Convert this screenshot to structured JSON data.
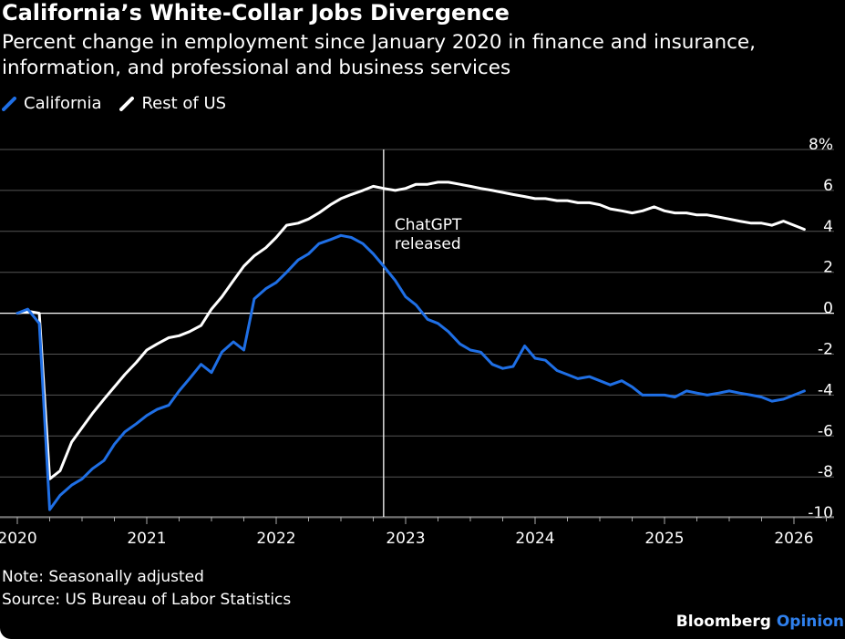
{
  "header": {
    "title": "California’s White-Collar Jobs Divergence",
    "subtitle": "Percent change in employment since January 2020 in finance and insurance, information, and professional and business services"
  },
  "legend": {
    "california": "California",
    "rest_of_us": "Rest of US"
  },
  "colors": {
    "california": "#1f6fe5",
    "rest_of_us": "#ffffff",
    "background": "#000000",
    "grid": "#555555",
    "accent": "#2f80ed"
  },
  "footer": {
    "note": "Note: Seasonally adjusted",
    "source": "Source: US Bureau of Labor Statistics",
    "brand_main": "Bloomberg",
    "brand_accent": "Opinion"
  },
  "chart_data": {
    "type": "line",
    "title": "California’s White-Collar Jobs Divergence",
    "subtitle": "Percent change in employment since January 2020 in finance and insurance, information, and professional and business services",
    "xlabel": "",
    "ylabel": "",
    "xlim": [
      2020.0,
      2026.33
    ],
    "ylim": [
      -11,
      8
    ],
    "yticks": [
      8,
      6,
      4,
      2,
      0,
      -2,
      -4,
      -6,
      -8,
      -10
    ],
    "ytick_labels": [
      "8%",
      "6",
      "4",
      "2",
      "0",
      "-2",
      "-4",
      "-6",
      "-8",
      "-10"
    ],
    "xticks": [
      2020,
      2021,
      2022,
      2023,
      2024,
      2025,
      2026
    ],
    "xtick_labels": [
      "2020",
      "2021",
      "2022",
      "2023",
      "2024",
      "2025",
      "2026"
    ],
    "grid": true,
    "legend_position": "top-left",
    "annotations": [
      {
        "x": 2022.83,
        "label_lines": [
          "ChatGPT",
          "released"
        ]
      }
    ],
    "series": [
      {
        "name": "California",
        "x": [
          2020.0,
          2020.08,
          2020.17,
          2020.25,
          2020.33,
          2020.42,
          2020.5,
          2020.58,
          2020.67,
          2020.75,
          2020.83,
          2020.92,
          2021.0,
          2021.08,
          2021.17,
          2021.25,
          2021.33,
          2021.42,
          2021.5,
          2021.58,
          2021.67,
          2021.75,
          2021.83,
          2021.92,
          2022.0,
          2022.08,
          2022.17,
          2022.25,
          2022.33,
          2022.42,
          2022.5,
          2022.58,
          2022.67,
          2022.75,
          2022.83,
          2022.92,
          2023.0,
          2023.08,
          2023.17,
          2023.25,
          2023.33,
          2023.42,
          2023.5,
          2023.58,
          2023.67,
          2023.75,
          2023.83,
          2023.92,
          2024.0,
          2024.08,
          2024.17,
          2024.25,
          2024.33,
          2024.42,
          2024.5,
          2024.58,
          2024.67,
          2024.75,
          2024.83,
          2024.92,
          2025.0,
          2025.08,
          2025.17,
          2025.25,
          2025.33,
          2025.42,
          2025.5,
          2025.58,
          2025.67,
          2025.75,
          2025.83,
          2025.92,
          2026.0,
          2026.08
        ],
        "values": [
          0.0,
          0.2,
          -0.5,
          -9.6,
          -8.9,
          -8.4,
          -8.1,
          -7.6,
          -7.2,
          -6.4,
          -5.8,
          -5.4,
          -5.0,
          -4.7,
          -4.5,
          -3.8,
          -3.2,
          -2.5,
          -2.9,
          -1.9,
          -1.4,
          -1.8,
          0.7,
          1.2,
          1.5,
          2.0,
          2.6,
          2.9,
          3.4,
          3.6,
          3.8,
          3.7,
          3.4,
          2.9,
          2.3,
          1.6,
          0.8,
          0.4,
          -0.3,
          -0.5,
          -0.9,
          -1.5,
          -1.8,
          -1.9,
          -2.5,
          -2.7,
          -2.6,
          -1.6,
          -2.2,
          -2.3,
          -2.8,
          -3.0,
          -3.2,
          -3.1,
          -3.3,
          -3.5,
          -3.3,
          -3.6,
          -4.0,
          -4.0,
          -4.0,
          -4.1,
          -3.8,
          -3.9,
          -4.0,
          -3.9,
          -3.8,
          -3.9,
          -4.0,
          -4.1,
          -4.3,
          -4.2,
          -4.0,
          -3.8
        ]
      },
      {
        "name": "Rest of US",
        "x": [
          2020.0,
          2020.08,
          2020.17,
          2020.25,
          2020.33,
          2020.42,
          2020.5,
          2020.58,
          2020.67,
          2020.75,
          2020.83,
          2020.92,
          2021.0,
          2021.08,
          2021.17,
          2021.25,
          2021.33,
          2021.42,
          2021.5,
          2021.58,
          2021.67,
          2021.75,
          2021.83,
          2021.92,
          2022.0,
          2022.08,
          2022.17,
          2022.25,
          2022.33,
          2022.42,
          2022.5,
          2022.58,
          2022.67,
          2022.75,
          2022.83,
          2022.92,
          2023.0,
          2023.08,
          2023.17,
          2023.25,
          2023.33,
          2023.42,
          2023.5,
          2023.58,
          2023.67,
          2023.75,
          2023.83,
          2023.92,
          2024.0,
          2024.08,
          2024.17,
          2024.25,
          2024.33,
          2024.42,
          2024.5,
          2024.58,
          2024.67,
          2024.75,
          2024.83,
          2024.92,
          2025.0,
          2025.08,
          2025.17,
          2025.25,
          2025.33,
          2025.42,
          2025.5,
          2025.58,
          2025.67,
          2025.75,
          2025.83,
          2025.92,
          2026.0,
          2026.08
        ],
        "values": [
          0.0,
          0.1,
          0.0,
          -8.1,
          -7.7,
          -6.3,
          -5.6,
          -4.9,
          -4.2,
          -3.6,
          -3.0,
          -2.4,
          -1.8,
          -1.5,
          -1.2,
          -1.1,
          -0.9,
          -0.6,
          0.2,
          0.8,
          1.6,
          2.3,
          2.8,
          3.2,
          3.7,
          4.3,
          4.4,
          4.6,
          4.9,
          5.3,
          5.6,
          5.8,
          6.0,
          6.2,
          6.1,
          6.0,
          6.1,
          6.3,
          6.3,
          6.4,
          6.4,
          6.3,
          6.2,
          6.1,
          6.0,
          5.9,
          5.8,
          5.7,
          5.6,
          5.6,
          5.5,
          5.5,
          5.4,
          5.4,
          5.3,
          5.1,
          5.0,
          4.9,
          5.0,
          5.2,
          5.0,
          4.9,
          4.9,
          4.8,
          4.8,
          4.7,
          4.6,
          4.5,
          4.4,
          4.4,
          4.3,
          4.5,
          4.3,
          4.1
        ]
      }
    ]
  }
}
